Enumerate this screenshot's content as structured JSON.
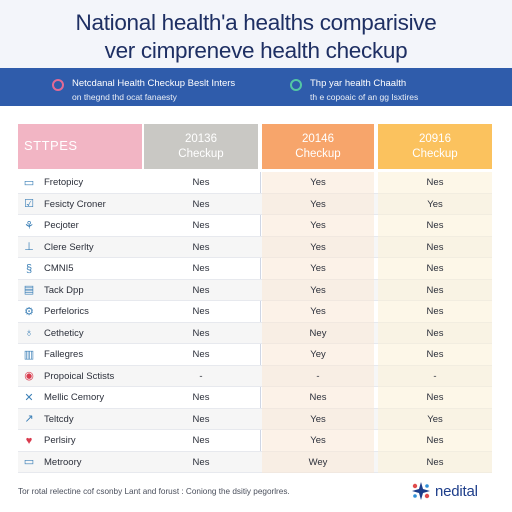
{
  "header": {
    "title_line1": "National health'a healths comparisive",
    "title_line2": "ver cimpreneve health checkup",
    "info_left_line1": "Netcdanal Health Checkup Beslt Inters",
    "info_left_line2": "on thegnd thd ocat fanaesty",
    "info_right_line1": "Thp yar health Chaalth",
    "info_right_line2": "th e copoaic of an gg Isxtires",
    "info_left_dot_color": "#e26a95",
    "info_right_dot_color": "#53c7a4"
  },
  "table": {
    "types_label": "STTPES",
    "columns": [
      {
        "line1": "20136",
        "line2": "Checkup",
        "color": "#c9c8c4"
      },
      {
        "line1": "20146",
        "line2": "Checkup",
        "color": "#f7a56b"
      },
      {
        "line1": "20916",
        "line2": "Checkup",
        "color": "#fbc25e"
      }
    ],
    "rows": [
      {
        "icon": "monitor-icon",
        "glyph": "▭",
        "name": "Fretopicy",
        "v1": "Nes",
        "v2": "Yes",
        "v3": "Nes"
      },
      {
        "icon": "check-icon",
        "glyph": "☑",
        "name": "Fesicty Croner",
        "v1": "Nes",
        "v2": "Yes",
        "v3": "Yes"
      },
      {
        "icon": "sprout-icon",
        "glyph": "⚘",
        "name": "Pecjoter",
        "v1": "Nes",
        "v2": "Yes",
        "v3": "Nes"
      },
      {
        "icon": "pedestal-icon",
        "glyph": "⊥",
        "name": "Clere Serlty",
        "v1": "Nes",
        "v2": "Yes",
        "v3": "Nes"
      },
      {
        "icon": "dna-icon",
        "glyph": "§",
        "name": "CMNI5",
        "v1": "Nes",
        "v2": "Yes",
        "v3": "Nes"
      },
      {
        "icon": "clipboard-icon",
        "glyph": "▤",
        "name": "Tack Dpp",
        "v1": "Nes",
        "v2": "Yes",
        "v3": "Nes"
      },
      {
        "icon": "gear-icon",
        "glyph": "⚙",
        "name": "Perfelorics",
        "v1": "Nes",
        "v2": "Yes",
        "v3": "Nes"
      },
      {
        "icon": "stethoscope-icon",
        "glyph": "♁",
        "name": "Cetheticy",
        "v1": "Nes",
        "v2": "Ney",
        "v3": "Nes"
      },
      {
        "icon": "chart-icon",
        "glyph": "▥",
        "name": "Fallegres",
        "v1": "Nes",
        "v2": "Yey",
        "v3": "Nes"
      },
      {
        "icon": "badge-icon",
        "glyph": "◉",
        "name": "Propoical Sctists",
        "v1": "-",
        "v2": "-",
        "v3": "-"
      },
      {
        "icon": "syringe-icon",
        "glyph": "✕",
        "name": "Mellic Cemory",
        "v1": "Nes",
        "v2": "Nes",
        "v3": "Nes"
      },
      {
        "icon": "arrow-icon",
        "glyph": "↗",
        "name": "Teltcdy",
        "v1": "Nes",
        "v2": "Yes",
        "v3": "Yes"
      },
      {
        "icon": "heart-icon",
        "glyph": "♥",
        "name": "Perlsiry",
        "v1": "Nes",
        "v2": "Yes",
        "v3": "Nes"
      },
      {
        "icon": "monitor-icon",
        "glyph": "▭",
        "name": "Metroory",
        "v1": "Nes",
        "v2": "Wey",
        "v3": "Nes"
      }
    ]
  },
  "footer": {
    "note": "Tor rotal relectine cof csonby Lant and forust : Coniong the dsitiy pegorlres.",
    "brand": "nedital"
  }
}
